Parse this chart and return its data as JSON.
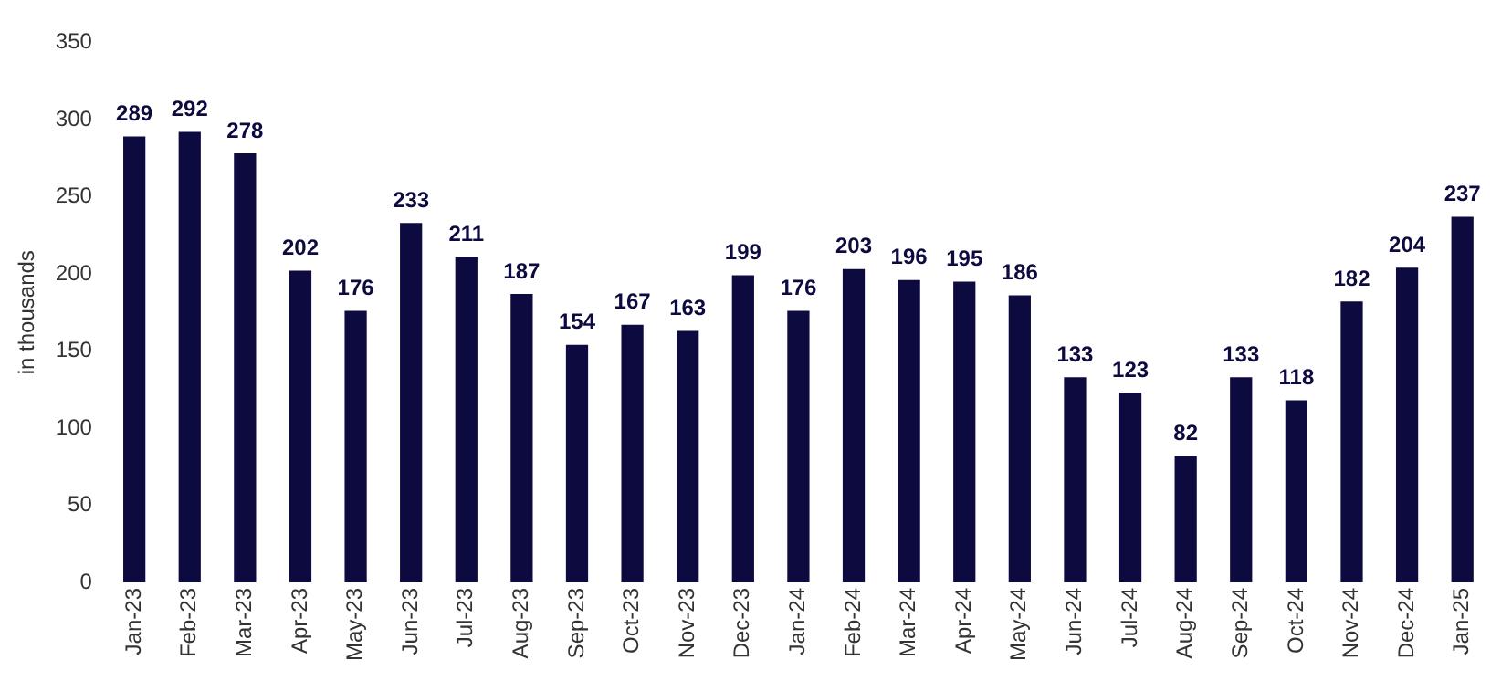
{
  "chart_data": {
    "type": "bar",
    "ylabel": "in thousands",
    "categories": [
      "Jan-23",
      "Feb-23",
      "Mar-23",
      "Apr-23",
      "May-23",
      "Jun-23",
      "Jul-23",
      "Aug-23",
      "Sep-23",
      "Oct-23",
      "Nov-23",
      "Dec-23",
      "Jan-24",
      "Feb-24",
      "Mar-24",
      "Apr-24",
      "May-24",
      "Jun-24",
      "Jul-24",
      "Aug-24",
      "Sep-24",
      "Oct-24",
      "Nov-24",
      "Dec-24",
      "Jan-25"
    ],
    "values": [
      289,
      292,
      278,
      202,
      176,
      233,
      211,
      187,
      154,
      167,
      163,
      199,
      176,
      203,
      196,
      195,
      186,
      133,
      123,
      82,
      133,
      118,
      182,
      204,
      237
    ],
    "color": "#0c0a3e",
    "ylim": [
      0,
      350
    ],
    "yticks": [
      0,
      50,
      100,
      150,
      200,
      250,
      300,
      350
    ],
    "grid": false,
    "legend": false,
    "data_labels": true
  }
}
